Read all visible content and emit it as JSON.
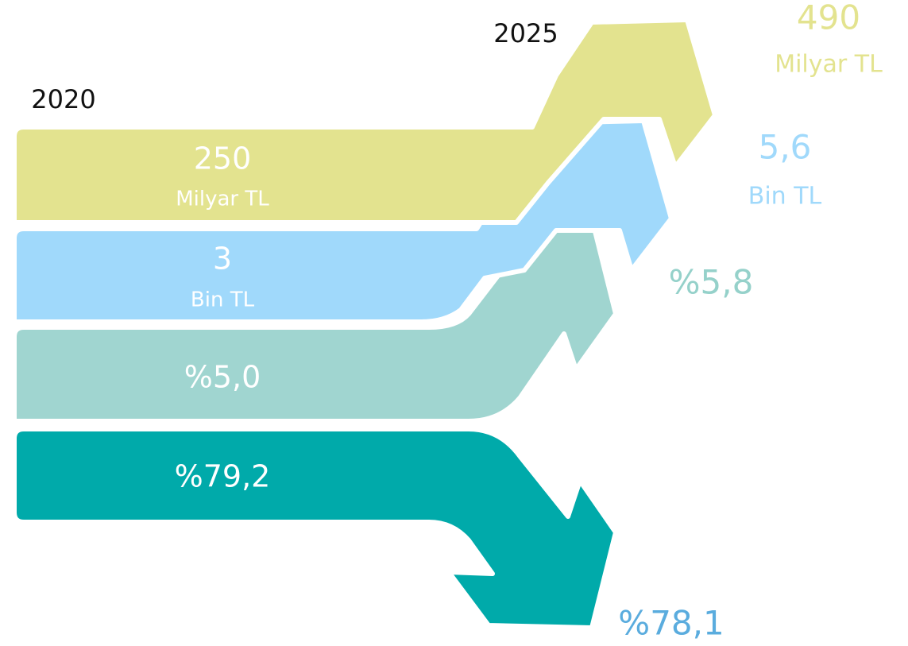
{
  "labels": {
    "start": "2020",
    "end": "2025"
  },
  "bands": [
    {
      "start_value": "250",
      "start_unit": "Milyar TL",
      "end_value": "490",
      "end_unit": "Milyar TL"
    },
    {
      "start_value": "3",
      "start_unit": "Bin TL",
      "end_value": "5,6",
      "end_unit": "Bin TL"
    },
    {
      "start_value": "%5,0",
      "end_value": "%5,8"
    },
    {
      "start_value": "%79,2",
      "end_value": "%78,1"
    }
  ]
}
